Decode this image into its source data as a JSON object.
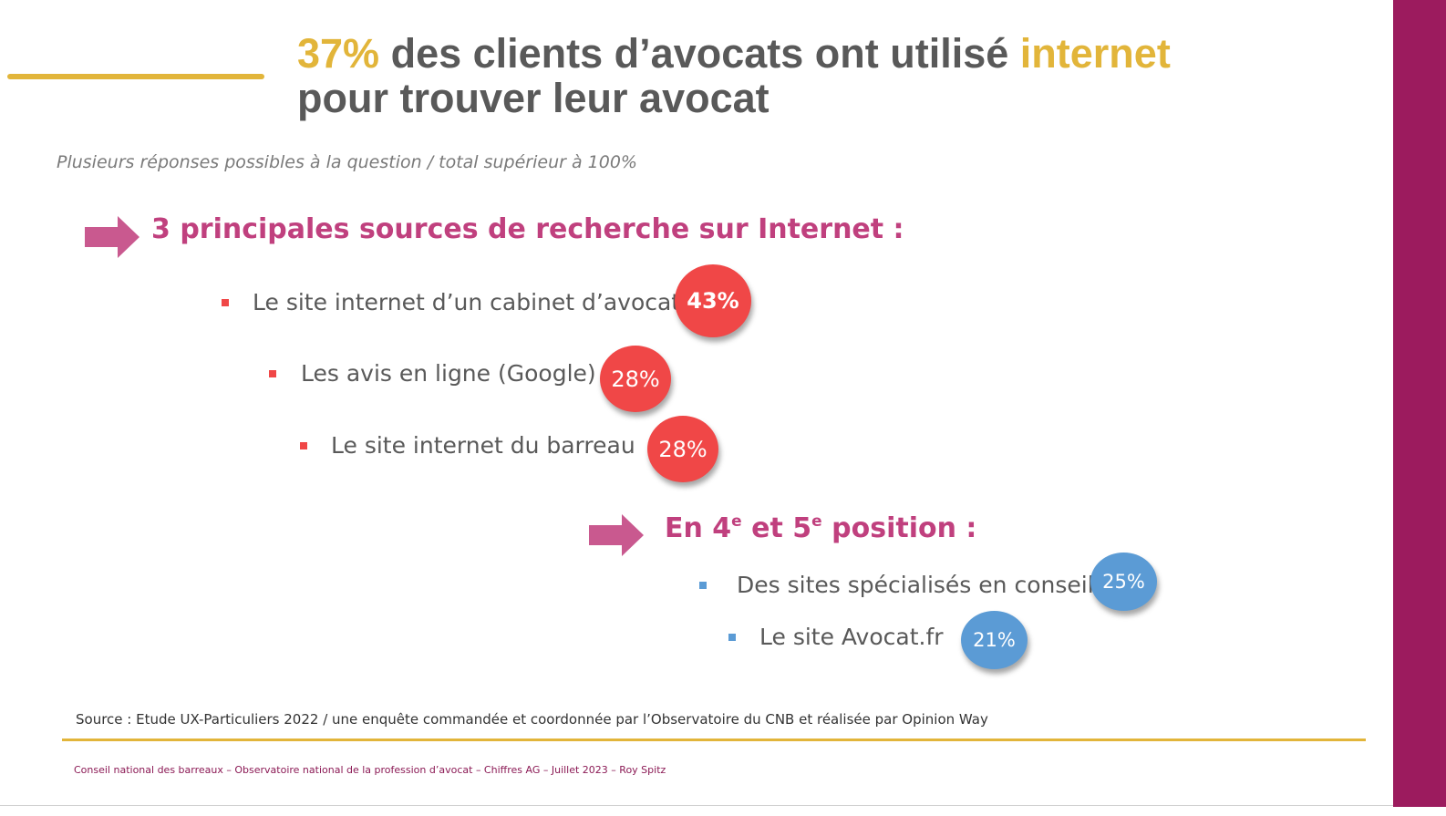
{
  "title": {
    "highlight_percent": "37%",
    "line1_middle": " des clients d’avocats ont utilisé ",
    "line1_accent": "internet",
    "line2": "pour trouver leur avocat"
  },
  "note": "Plusieurs réponses possibles à la question / total supérieur à 100%",
  "section_main": {
    "heading": "3 principales sources de recherche sur Internet :",
    "items": [
      {
        "label": "Le site internet d’un cabinet d’avocat",
        "percent": "43%"
      },
      {
        "label": "Les avis en ligne (Google)",
        "percent": "28%"
      },
      {
        "label": "Le site internet du barreau",
        "percent": "28%"
      }
    ]
  },
  "section_secondary": {
    "heading_prefix": "En 4",
    "sup_1": "e",
    "heading_middle": " et 5",
    "sup_2": "e",
    "heading_suffix": " position :",
    "items": [
      {
        "label": "Des sites spécialisés en conseil",
        "percent": "25%"
      },
      {
        "label": "Le site Avocat.fr",
        "percent": "21%"
      }
    ]
  },
  "source": "Source : Etude UX-Particuliers 2022 / une enquête commandée et coordonnée par l’Observatoire du CNB et réalisée par Opinion Way",
  "footer": "Conseil national des barreaux – Observatoire national de la profession d’avocat – Chiffres AG – Juillet 2023 – Roy Spitz",
  "colors": {
    "accent_gold": "#e2b53a",
    "heading_pink": "#c0407e",
    "sidebar_purple": "#9c1b5e",
    "bubble_red": "#f04747",
    "bubble_blue": "#5b9bd5"
  },
  "icons": {
    "arrow": "right-arrow-icon",
    "bullet": "square-bullet-icon"
  }
}
